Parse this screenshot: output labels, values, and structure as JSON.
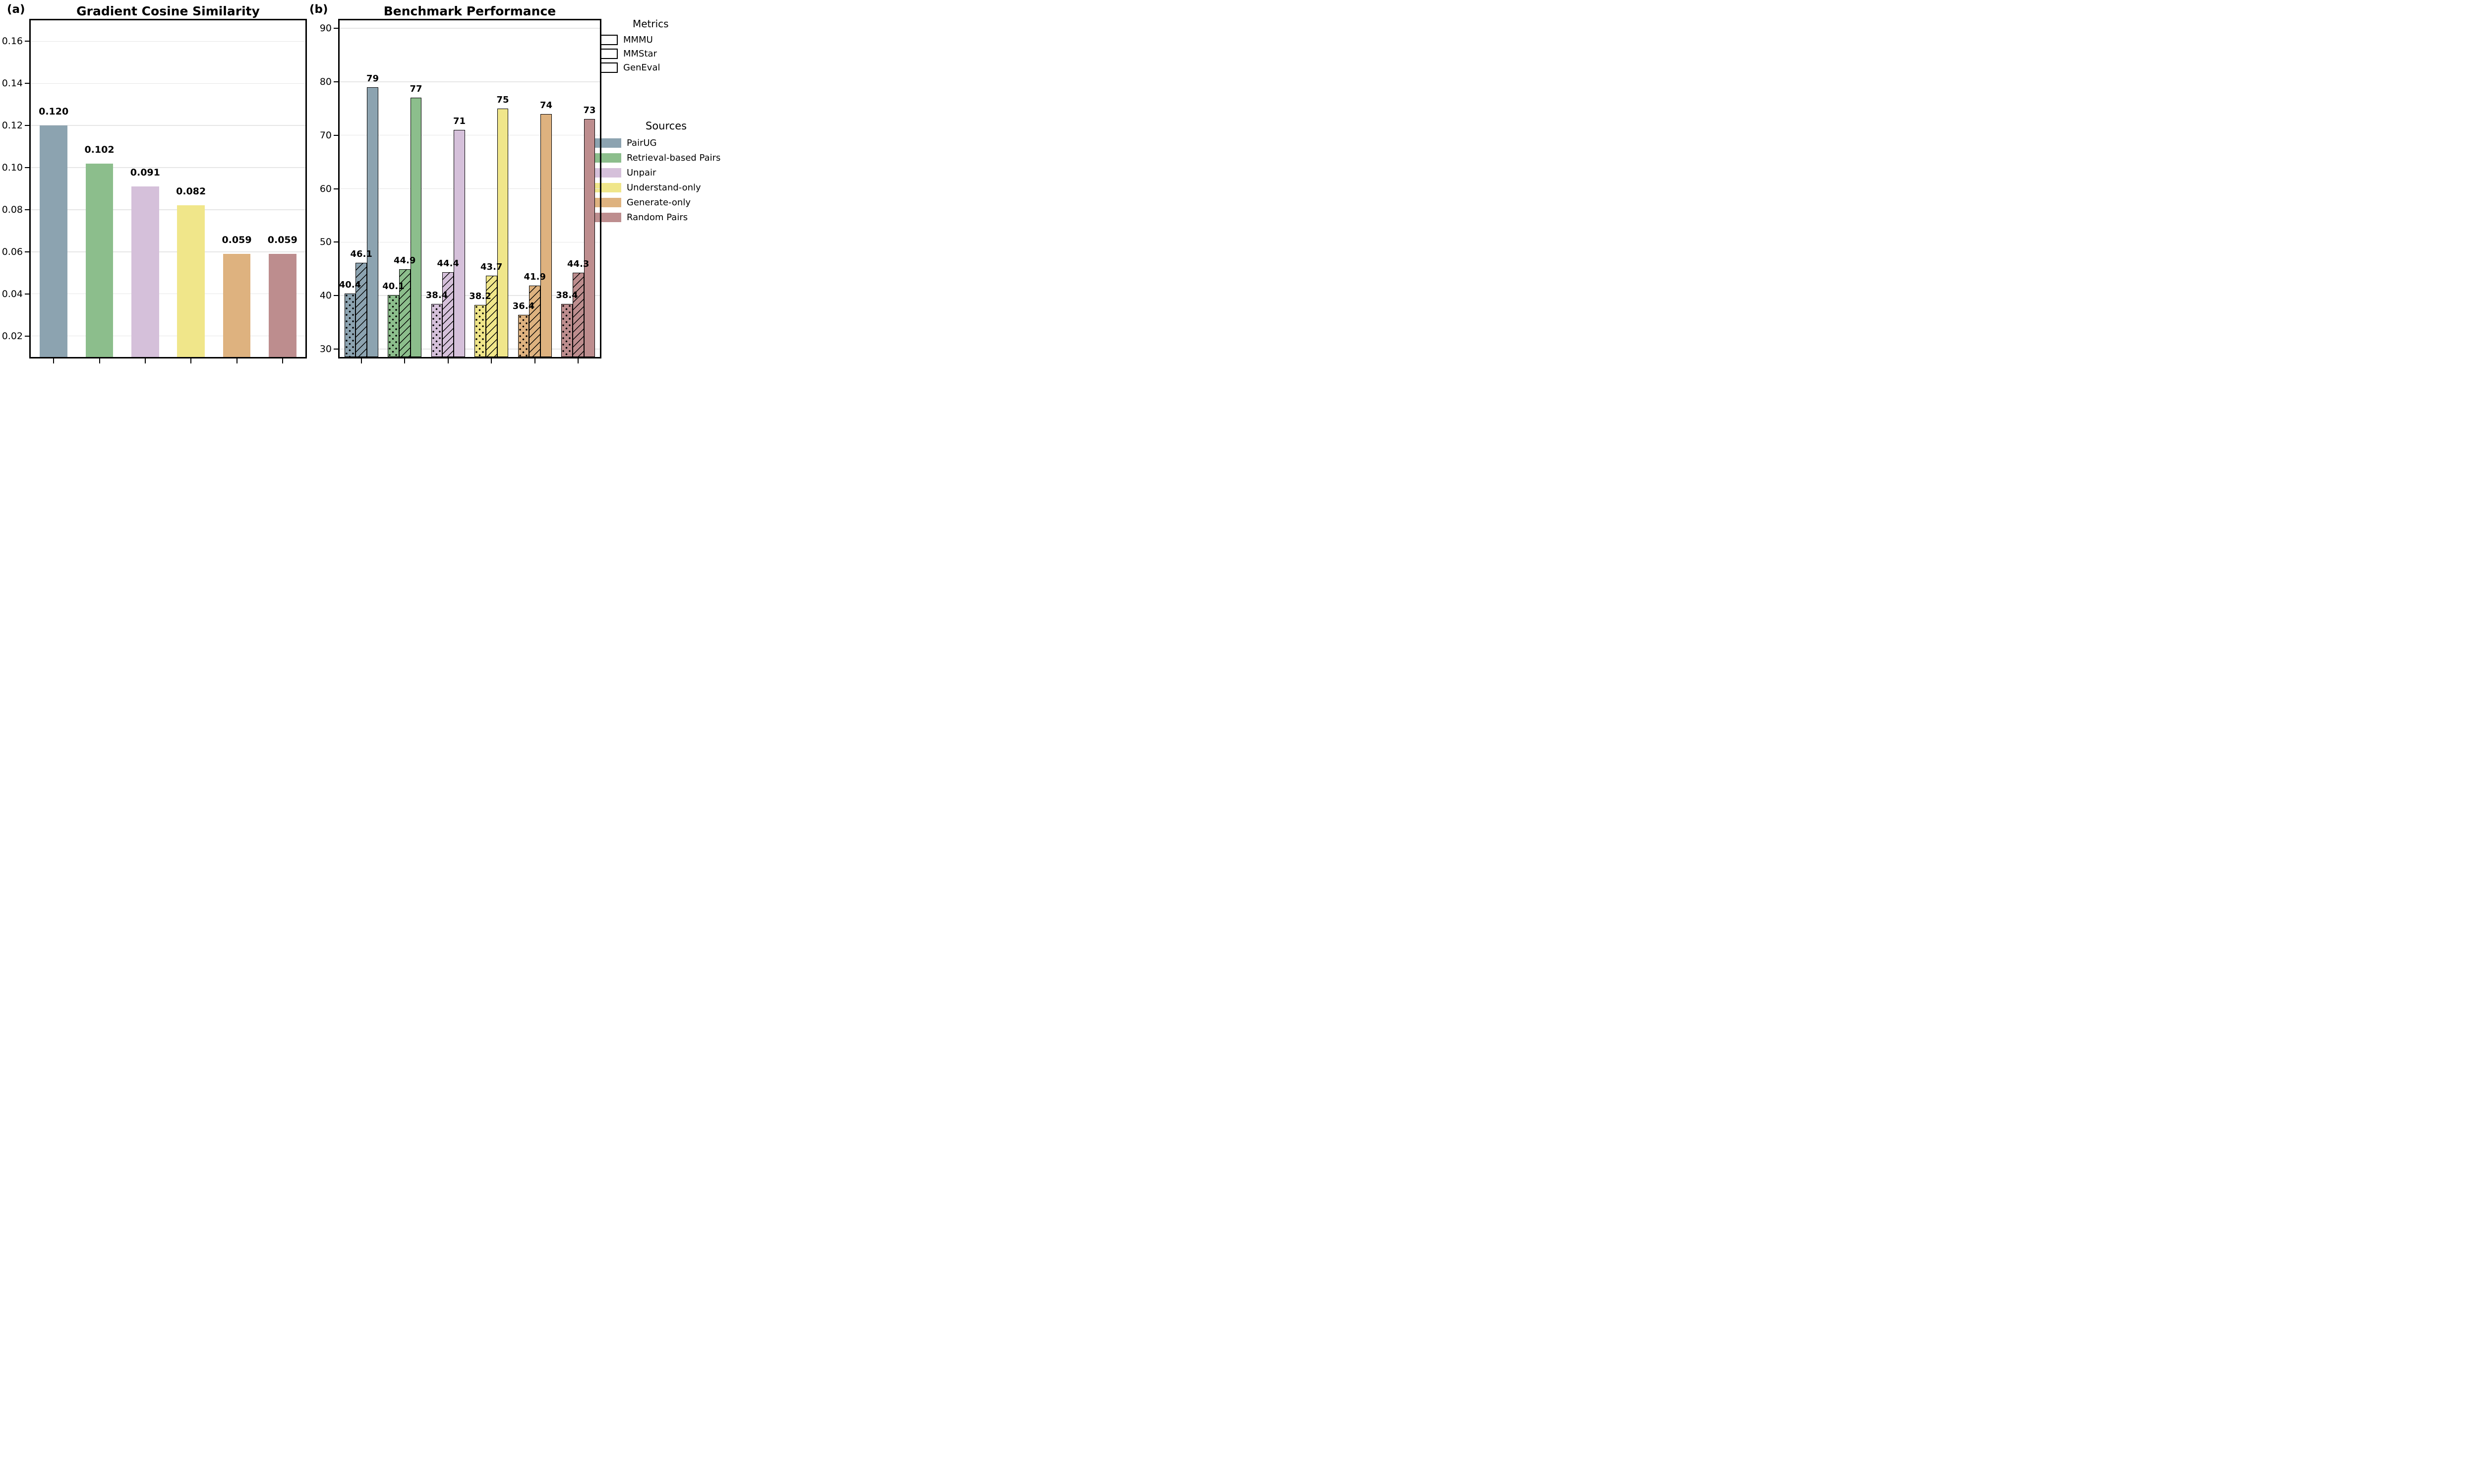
{
  "figure": {
    "panel_a": "(a)",
    "panel_b": "(b)"
  },
  "legend_metrics": {
    "title": "Metrics",
    "items": [
      {
        "label": "MMMU",
        "pattern": "dots"
      },
      {
        "label": "MMStar",
        "pattern": "hatch"
      },
      {
        "label": "GenEval",
        "pattern": "solid"
      }
    ]
  },
  "legend_sources": {
    "title": "Sources",
    "items": [
      {
        "label": "PairUG",
        "color": "#8ca3b0"
      },
      {
        "label": "Retrieval-based Pairs",
        "color": "#8cbe8c"
      },
      {
        "label": "Unpair",
        "color": "#d5c0da"
      },
      {
        "label": "Understand-only",
        "color": "#f0e68a"
      },
      {
        "label": "Generate-only",
        "color": "#deb27f"
      },
      {
        "label": "Random Pairs",
        "color": "#bd8d8e"
      }
    ]
  },
  "chart_data": [
    {
      "type": "bar",
      "title": "Gradient Cosine Similarity",
      "categories": [
        "PairUG",
        "Retrieval-based Pairs",
        "Unpair",
        "Understand-only",
        "Generate-only",
        "Random Pairs"
      ],
      "values": [
        0.12,
        0.102,
        0.091,
        0.082,
        0.059,
        0.059
      ],
      "value_labels": [
        "0.120",
        "0.102",
        "0.091",
        "0.082",
        "0.059",
        "0.059"
      ],
      "bar_colors": [
        "#8ca3b0",
        "#8cbe8c",
        "#d5c0da",
        "#f0e68a",
        "#deb27f",
        "#bd8d8e"
      ],
      "ylim": [
        0.01,
        0.17
      ],
      "yticks": [
        0.02,
        0.04,
        0.06,
        0.08,
        0.1,
        0.12,
        0.14,
        0.16
      ],
      "ytick_labels": [
        "0.02",
        "0.04",
        "0.06",
        "0.08",
        "0.10",
        "0.12",
        "0.14",
        "0.16"
      ],
      "xtick_labels": [],
      "xlabel": "",
      "ylabel": "",
      "grid": true,
      "legend_position": "none",
      "bar_width_frac": 0.6,
      "bar_border": false,
      "label_gap": 16,
      "label_size": 19
    },
    {
      "type": "bar",
      "title": "Benchmark Performance",
      "categories": [
        "PairUG",
        "Retrieval-based Pairs",
        "Unpair",
        "Understand-only",
        "Generate-only",
        "Random Pairs"
      ],
      "series": [
        {
          "name": "MMMU",
          "pattern": "dots",
          "values": [
            40.4,
            40.1,
            38.4,
            38.2,
            36.4,
            38.4
          ],
          "value_labels": [
            "40.4",
            "40.1",
            "38.4",
            "38.2",
            "36.4",
            "38.4"
          ]
        },
        {
          "name": "MMStar",
          "pattern": "hatch",
          "values": [
            46.1,
            44.9,
            44.4,
            43.7,
            41.9,
            44.3
          ],
          "value_labels": [
            "46.1",
            "44.9",
            "44.4",
            "43.7",
            "41.9",
            "44.3"
          ]
        },
        {
          "name": "GenEval",
          "pattern": "solid",
          "values": [
            79,
            77,
            71,
            75,
            74,
            73
          ],
          "value_labels": [
            "79",
            "77",
            "71",
            "75",
            "74",
            "73"
          ]
        }
      ],
      "bar_colors": [
        "#8ca3b0",
        "#8cbe8c",
        "#d5c0da",
        "#f0e68a",
        "#deb27f",
        "#bd8d8e"
      ],
      "ylim": [
        28.5,
        91.5
      ],
      "yticks": [
        30,
        40,
        50,
        60,
        70,
        80,
        90
      ],
      "ytick_labels": [
        "30",
        "40",
        "50",
        "60",
        "70",
        "80",
        "90"
      ],
      "xtick_labels": [],
      "xlabel": "",
      "ylabel": "",
      "grid": true,
      "legend_position": "right",
      "bar_width_frac": 0.26,
      "bar_border": true,
      "label_gap": 6,
      "label_size": 18
    }
  ]
}
